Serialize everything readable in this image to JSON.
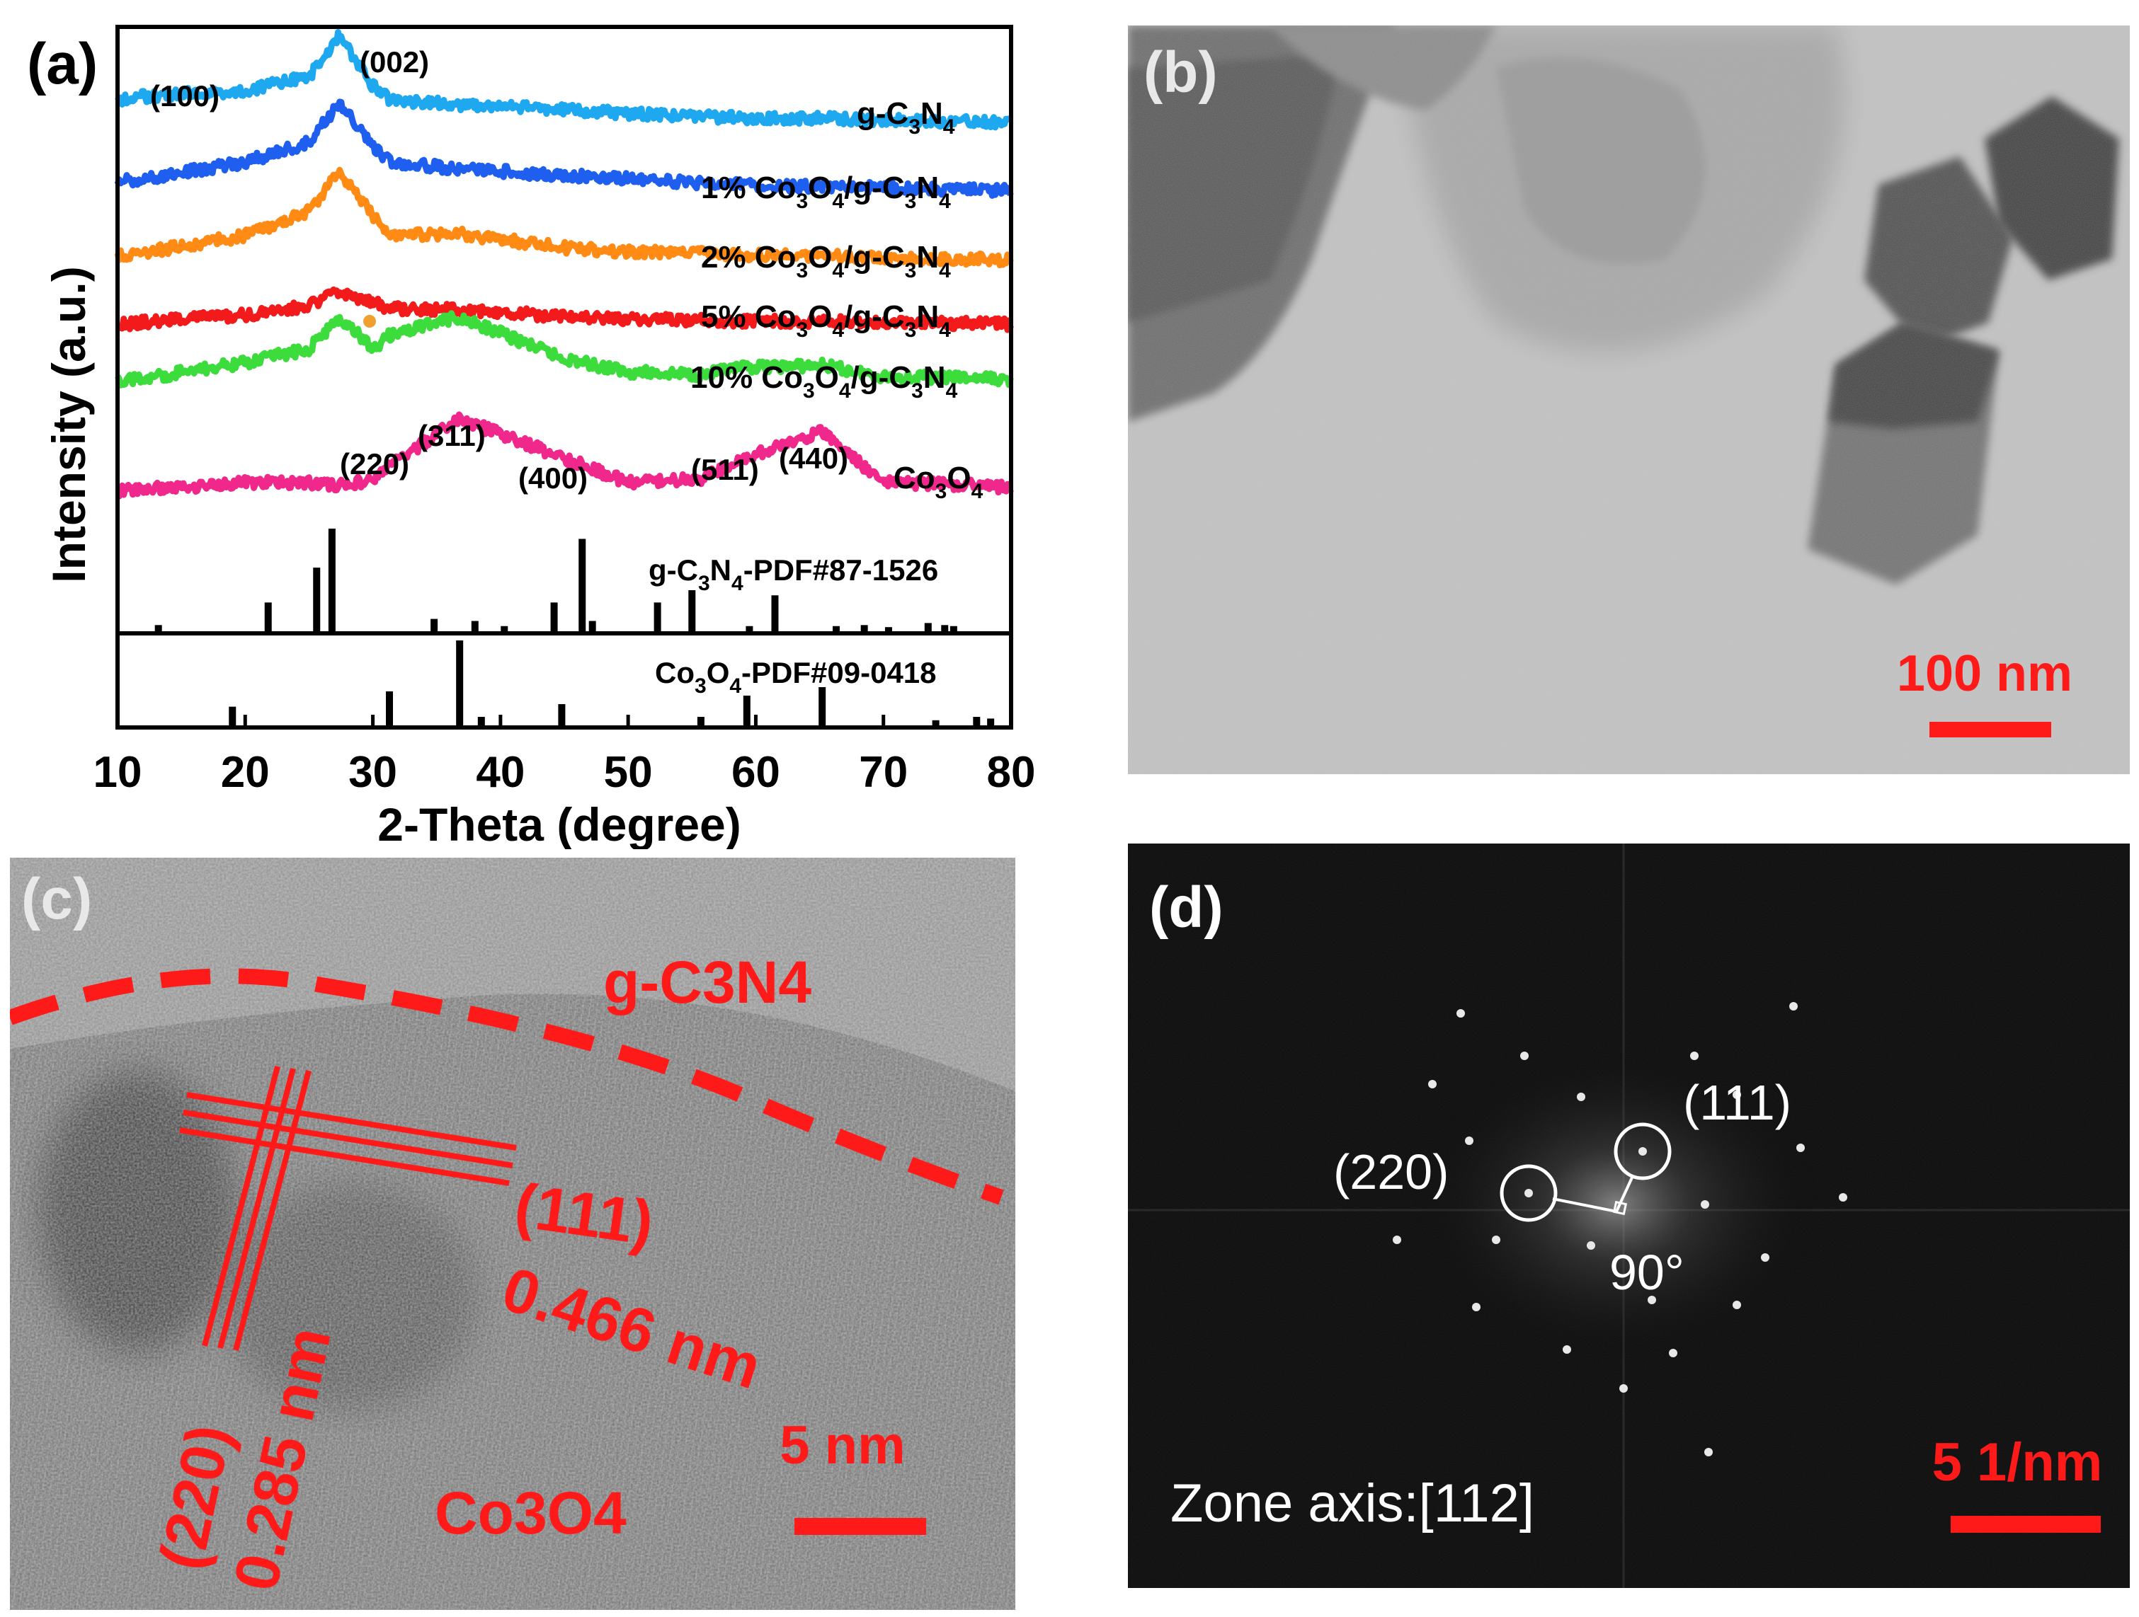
{
  "panel_a": {
    "label": "(a)",
    "ylabel": "Intensity (a.u.)",
    "xlabel": "2-Theta (degree)",
    "xticks": [
      "10",
      "20",
      "30",
      "40",
      "50",
      "60",
      "70",
      "80"
    ],
    "peak_labels": {
      "p100": "(100)",
      "p002": "(002)",
      "p220": "(220)",
      "p311": "(311)",
      "p400": "(400)",
      "p511": "(511)",
      "p440": "(440)"
    },
    "sample_labels": {
      "gcn_pre": "g-C",
      "gcn_sub3": "3",
      "gcn_n": "N",
      "gcn_sub4": "4",
      "s1_pre": "1% Co",
      "s2_pre": "2% Co",
      "s5_pre": "5% Co",
      "s10_pre": "10% Co",
      "co_sub3": "3",
      "o": "O",
      "sub4": "4",
      "slash_gc": "/g-C",
      "n": "N",
      "co3o4_pre": "Co",
      "ref1_pre": "g-C",
      "ref1_post": "-PDF#87-1526",
      "ref2_pre": "Co",
      "ref2_post": "-PDF#09-0418"
    },
    "colors": {
      "g-C3N4": "#1ea8f0",
      "1%": "#1f5ff0",
      "2%": "#ff8a14",
      "5%": "#f21a1a",
      "10%": "#3ddc3d",
      "Co3O4": "#f0288c"
    }
  },
  "panel_b": {
    "label": "(b)",
    "scale": "100 nm",
    "scale_color": "#ff1a1a"
  },
  "panel_c": {
    "label": "(c)",
    "gcn": "g-C3N4",
    "co3o4": "Co3O4",
    "plane1": "(111)",
    "d1": "0.466 nm",
    "plane2": "(220)",
    "d2": "0.285 nm",
    "scale": "5 nm"
  },
  "panel_d": {
    "label": "(d)",
    "p111": "(111)",
    "p220": "(220)",
    "angle": "90°",
    "zone": "Zone axis:[112]",
    "scale": "5 1/nm"
  },
  "chart_data": {
    "type": "line",
    "title": "",
    "xlabel": "2-Theta (degree)",
    "ylabel": "Intensity (a.u.)",
    "xlim": [
      10,
      80
    ],
    "x": [
      10,
      13,
      20,
      25,
      27.4,
      30,
      31.3,
      36.8,
      44.8,
      50,
      55.7,
      59.4,
      65.2,
      70,
      78,
      80
    ],
    "series": [
      {
        "name": "g-C3N4",
        "values": [
          0.3,
          0.35,
          0.4,
          0.55,
          1.0,
          0.45,
          0.3,
          0.25,
          0.2,
          0.15,
          0.12,
          0.1,
          0.1,
          0.08,
          0.06,
          0.05
        ]
      },
      {
        "name": "1% Co3O4/g-C3N4",
        "values": [
          0.15,
          0.2,
          0.35,
          0.55,
          0.95,
          0.5,
          0.35,
          0.28,
          0.22,
          0.18,
          0.14,
          0.12,
          0.1,
          0.09,
          0.07,
          0.06
        ]
      },
      {
        "name": "2% Co3O4/g-C3N4",
        "values": [
          0.1,
          0.15,
          0.3,
          0.55,
          0.95,
          0.5,
          0.3,
          0.32,
          0.18,
          0.14,
          0.12,
          0.1,
          0.1,
          0.08,
          0.06,
          0.05
        ]
      },
      {
        "name": "5% Co3O4/g-C3N4",
        "values": [
          0.05,
          0.1,
          0.2,
          0.35,
          0.55,
          0.4,
          0.3,
          0.28,
          0.18,
          0.14,
          0.12,
          0.1,
          0.1,
          0.08,
          0.06,
          0.05
        ]
      },
      {
        "name": "10% Co3O4/g-C3N4",
        "values": [
          0.05,
          0.1,
          0.25,
          0.4,
          0.75,
          0.4,
          0.55,
          0.75,
          0.3,
          0.15,
          0.12,
          0.2,
          0.22,
          0.1,
          0.08,
          0.06
        ]
      },
      {
        "name": "Co3O4",
        "values": [
          0.05,
          0.08,
          0.15,
          0.15,
          0.12,
          0.18,
          0.35,
          0.9,
          0.45,
          0.15,
          0.2,
          0.45,
          0.75,
          0.15,
          0.12,
          0.08
        ]
      }
    ],
    "reference_patterns": [
      {
        "name": "g-C3N4-PDF#87-1526",
        "peaks": [
          [
            13.2,
            0.06
          ],
          [
            21.8,
            0.28
          ],
          [
            25.6,
            0.62
          ],
          [
            26.8,
            1.0
          ],
          [
            34.8,
            0.12
          ],
          [
            38.0,
            0.1
          ],
          [
            40.3,
            0.05
          ],
          [
            44.2,
            0.28
          ],
          [
            46.4,
            0.9
          ],
          [
            47.2,
            0.1
          ],
          [
            52.3,
            0.28
          ],
          [
            55.0,
            0.4
          ],
          [
            59.5,
            0.05
          ],
          [
            61.5,
            0.35
          ],
          [
            66.3,
            0.05
          ],
          [
            68.5,
            0.06
          ],
          [
            70.4,
            0.04
          ],
          [
            73.5,
            0.08
          ],
          [
            74.8,
            0.06
          ],
          [
            75.5,
            0.05
          ]
        ]
      },
      {
        "name": "Co3O4-PDF#09-0418",
        "peaks": [
          [
            19.0,
            0.22
          ],
          [
            31.3,
            0.4
          ],
          [
            36.8,
            1.0
          ],
          [
            38.5,
            0.1
          ],
          [
            44.8,
            0.25
          ],
          [
            55.7,
            0.1
          ],
          [
            59.3,
            0.35
          ],
          [
            65.2,
            0.45
          ],
          [
            74.1,
            0.06
          ],
          [
            77.3,
            0.1
          ],
          [
            78.4,
            0.08
          ]
        ]
      }
    ]
  }
}
